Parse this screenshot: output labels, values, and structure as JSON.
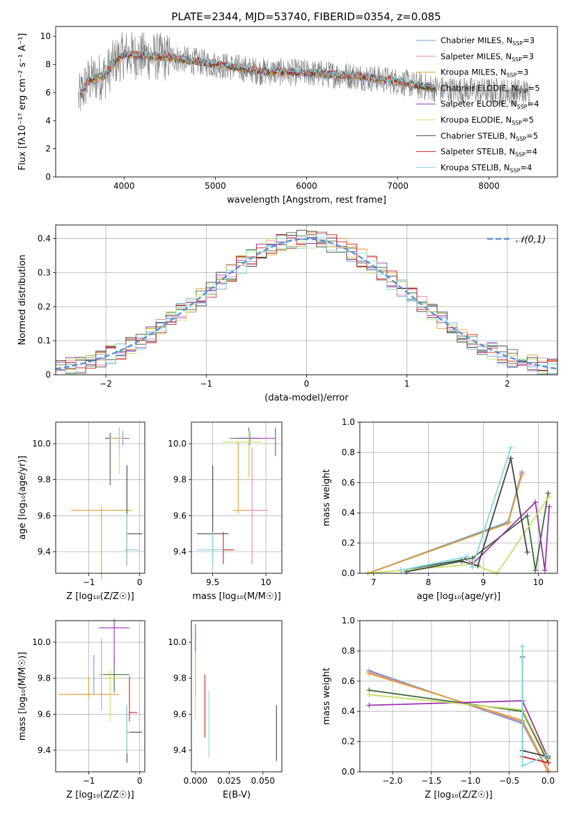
{
  "figure_title": "PLATE=2344, MJD=53740, FIBERID=0354, z=0.085",
  "chart_data": [
    {
      "id": "spectrum",
      "type": "line",
      "title": "PLATE=2344, MJD=53740, FIBERID=0354, z=0.085",
      "xlabel": "wavelength [Angstrom, rest frame]",
      "ylabel": "Flux [fλ10⁻¹⁷ erg cm⁻² s⁻¹ A⁻¹]",
      "xlim": [
        3250,
        8750
      ],
      "ylim": [
        0,
        10.7
      ],
      "xticks": [
        4000,
        5000,
        6000,
        7000,
        8000
      ],
      "yticks": [
        0,
        2,
        4,
        6,
        8,
        10
      ],
      "grid": false,
      "legend_position": "top-right",
      "data_series": {
        "name": "data",
        "color": "#808080",
        "wavelength_range": [
          3500,
          8450
        ]
      },
      "model_anchor_points": {
        "wavelength": [
          3500,
          3600,
          3800,
          3900,
          4000,
          4200,
          4500,
          5000,
          5500,
          6000,
          6500,
          7000,
          7200,
          7400
        ],
        "flux": [
          5.5,
          6.8,
          7.3,
          8.2,
          8.7,
          8.6,
          8.5,
          8.0,
          7.5,
          7.4,
          7.2,
          6.8,
          6.5,
          6.3
        ]
      },
      "series": [
        {
          "name": "Chabrier MILES, N",
          "sub": "SSP",
          "tail": "=3",
          "color": "#6a9ad6"
        },
        {
          "name": "Salpeter MILES, N",
          "sub": "SSP",
          "tail": "=3",
          "color": "#e58a9a"
        },
        {
          "name": "Kroupa MILES, N",
          "sub": "SSP",
          "tail": "=3",
          "color": "#e0a030"
        },
        {
          "name": "Chabrier ELODIE, N",
          "sub": "SSP",
          "tail": "=5",
          "color": "#3a6a3a"
        },
        {
          "name": "Salpeter ELODIE, N",
          "sub": "SSP",
          "tail": "=4",
          "color": "#9b30b0"
        },
        {
          "name": "Kroupa ELODIE, N",
          "sub": "SSP",
          "tail": "=5",
          "color": "#c8e060"
        },
        {
          "name": "Chabrier STELIB, N",
          "sub": "SSP",
          "tail": "=5",
          "color": "#404040"
        },
        {
          "name": "Salpeter STELIB, N",
          "sub": "SSP",
          "tail": "=4",
          "color": "#cc2222"
        },
        {
          "name": "Kroupa STELIB, N",
          "sub": "SSP",
          "tail": "=4",
          "color": "#80d8e0"
        }
      ]
    },
    {
      "id": "residuals",
      "type": "step",
      "xlabel": "(data-model)/error",
      "ylabel": "Normed distribution",
      "xlim": [
        -2.5,
        2.5
      ],
      "ylim": [
        0,
        0.44
      ],
      "xticks": [
        -2,
        -1,
        0,
        1,
        2
      ],
      "xtick_labels": [
        "−2",
        "−1",
        "0",
        "1",
        "2"
      ],
      "yticks": [
        0.0,
        0.1,
        0.2,
        0.3,
        0.4
      ],
      "grid": true,
      "legend": [
        {
          "name": "𝒩(0,1)",
          "color": "#5b8fd6",
          "style": "dashed"
        }
      ],
      "legend_position": "top-right",
      "bin_width": 0.1,
      "gaussian": {
        "mean": 0,
        "sigma": 1
      }
    },
    {
      "id": "age_vs_Z",
      "type": "errorbar",
      "xlabel": "Z [log₁₀(Z/Z☉)]",
      "ylabel": "age  [log₁₀(age/yr)]",
      "xlim": [
        -1.65,
        0.1
      ],
      "ylim": [
        9.28,
        10.12
      ],
      "xticks": [
        -1,
        0
      ],
      "xtick_labels": [
        "−1",
        "0"
      ],
      "yticks": [
        9.4,
        9.6,
        9.8,
        10.0
      ],
      "yticks_fmt": 1,
      "grid": true,
      "points": [
        {
          "series": 0,
          "x": -0.33,
          "y": 10.03,
          "xerr": [
            0.05,
            0.05
          ],
          "yerr": [
            0.04,
            0.04
          ]
        },
        {
          "series": 1,
          "x": -0.4,
          "y": 10.03,
          "xerr": [
            0.08,
            0.08
          ],
          "yerr": [
            0.06,
            0.06
          ]
        },
        {
          "series": 2,
          "x": -0.75,
          "y": 9.63,
          "xerr": [
            0.6,
            0.6
          ],
          "yerr": [
            0.38,
            0.02
          ]
        },
        {
          "series": 3,
          "x": -0.58,
          "y": 10.03,
          "xerr": [
            0.1,
            0.1
          ],
          "yerr": [
            0.26,
            0.03
          ]
        },
        {
          "series": 4,
          "x": -0.4,
          "y": 10.03,
          "xerr": [
            0.27,
            0.2
          ],
          "yerr": [
            0.06,
            0.04
          ]
        },
        {
          "series": 5,
          "x": -0.4,
          "y": 10.03,
          "xerr": [
            0.2,
            0.1
          ],
          "yerr": [
            0.2,
            0.05
          ]
        },
        {
          "series": 6,
          "x": -0.25,
          "y": 9.5,
          "xerr": [
            0.0,
            0.3
          ],
          "yerr": [
            0.18,
            0.38
          ]
        },
        {
          "series": 7,
          "x": -0.25,
          "y": 9.41,
          "xerr": [
            0.05,
            0.1
          ],
          "yerr": [
            0.08,
            0.15
          ]
        },
        {
          "series": 8,
          "x": -0.25,
          "y": 9.41,
          "xerr": [
            0.05,
            0.25
          ],
          "yerr": [
            0.09,
            0.2
          ]
        }
      ]
    },
    {
      "id": "age_vs_mass",
      "type": "errorbar",
      "xlabel": "mass [log₁₀(M/M☉)]",
      "ylabel": "",
      "xlim": [
        9.3,
        10.15
      ],
      "ylim": [
        9.28,
        10.12
      ],
      "xticks": [
        9.5,
        10.0
      ],
      "yticks": [
        9.4,
        9.6,
        9.8,
        10.0
      ],
      "yticks_fmt": 1,
      "grid": true,
      "points": [
        {
          "series": 0,
          "x": 9.85,
          "y": 10.03,
          "xerr": [
            0.12,
            0.1
          ],
          "yerr": [
            0.04,
            0.04
          ]
        },
        {
          "series": 1,
          "x": 9.87,
          "y": 9.63,
          "xerr": [
            0.1,
            0.15
          ],
          "yerr": [
            0.3,
            0.35
          ]
        },
        {
          "series": 2,
          "x": 9.74,
          "y": 9.63,
          "xerr": [
            0.05,
            0.07
          ],
          "yerr": [
            0.02,
            0.38
          ]
        },
        {
          "series": 3,
          "x": 9.84,
          "y": 10.03,
          "xerr": [
            0.18,
            0.05
          ],
          "yerr": [
            0.2,
            0.06
          ]
        },
        {
          "series": 4,
          "x": 10.09,
          "y": 10.03,
          "xerr": [
            0.3,
            0.0
          ],
          "yerr": [
            0.1,
            0.06
          ]
        },
        {
          "series": 5,
          "x": 9.84,
          "y": 10.01,
          "xerr": [
            0.25,
            0.12
          ],
          "yerr": [
            0.2,
            0.06
          ]
        },
        {
          "series": 6,
          "x": 9.5,
          "y": 9.5,
          "xerr": [
            0.15,
            0.15
          ],
          "yerr": [
            0.18,
            0.38
          ]
        },
        {
          "series": 7,
          "x": 9.6,
          "y": 9.41,
          "xerr": [
            0.15,
            0.1
          ],
          "yerr": [
            0.08,
            0.1
          ]
        },
        {
          "series": 8,
          "x": 9.5,
          "y": 9.41,
          "xerr": [
            0.15,
            0.1
          ],
          "yerr": [
            0.09,
            0.1
          ]
        }
      ]
    },
    {
      "id": "mw_vs_age",
      "type": "line",
      "xlabel": "age  [log₁₀(age/yr)]",
      "ylabel": "mass weight",
      "xlim": [
        6.75,
        10.35
      ],
      "ylim": [
        0,
        1.0
      ],
      "xticks": [
        7,
        8,
        9,
        10
      ],
      "yticks": [
        0.0,
        0.2,
        0.4,
        0.6,
        0.8,
        1.0
      ],
      "yticks_fmt": 1,
      "grid": true,
      "series": [
        {
          "series": 0,
          "x": [
            6.9,
            9.45,
            9.7
          ],
          "y": [
            0.0,
            0.34,
            0.67
          ]
        },
        {
          "series": 1,
          "x": [
            6.9,
            9.45,
            9.7
          ],
          "y": [
            0.0,
            0.33,
            0.66
          ]
        },
        {
          "series": 2,
          "x": [
            6.9,
            9.45,
            9.7
          ],
          "y": [
            0.0,
            0.33,
            0.65
          ]
        },
        {
          "series": 3,
          "x": [
            7.5,
            8.8,
            9.8,
            9.95,
            10.18
          ],
          "y": [
            0.02,
            0.1,
            0.38,
            0.02,
            0.53
          ]
        },
        {
          "series": 4,
          "x": [
            8.8,
            9.95,
            10.12,
            10.2
          ],
          "y": [
            0.06,
            0.47,
            0.02,
            0.44
          ]
        },
        {
          "series": 5,
          "x": [
            6.9,
            8.8,
            9.25,
            10.2
          ],
          "y": [
            0.0,
            0.06,
            0.0,
            0.51
          ]
        },
        {
          "series": 6,
          "x": [
            7.6,
            8.6,
            8.9,
            9.5,
            9.8
          ],
          "y": [
            0.01,
            0.08,
            0.05,
            0.76,
            0.14
          ]
        },
        {
          "series": 7,
          "x": [
            8.7,
            8.8
          ],
          "y": [
            0.1,
            0.06
          ]
        },
        {
          "series": 8,
          "x": [
            7.5,
            8.7,
            8.8,
            9.5
          ],
          "y": [
            0.02,
            0.11,
            0.04,
            0.83
          ]
        }
      ]
    },
    {
      "id": "mass_vs_Z",
      "type": "errorbar",
      "xlabel": "Z [log₁₀(Z/Z☉)]",
      "ylabel": "mass [log₁₀(M/M☉)]",
      "xlim": [
        -1.65,
        0.1
      ],
      "ylim": [
        9.28,
        10.12
      ],
      "xticks": [
        -1,
        0
      ],
      "xtick_labels": [
        "−1",
        "0"
      ],
      "yticks": [
        9.4,
        9.6,
        9.8,
        10.0
      ],
      "yticks_fmt": 1,
      "grid": true,
      "points": [
        {
          "series": 0,
          "x": -0.9,
          "y": 9.71,
          "xerr": [
            0.4,
            0.4
          ],
          "yerr": [
            0.0,
            0.22
          ]
        },
        {
          "series": 1,
          "x": -0.75,
          "y": 9.82,
          "xerr": [
            0.05,
            0.1
          ],
          "yerr": [
            0.2,
            0.2
          ]
        },
        {
          "series": 2,
          "x": -1.0,
          "y": 9.71,
          "xerr": [
            0.6,
            0.6
          ],
          "yerr": [
            0.02,
            0.1
          ]
        },
        {
          "series": 3,
          "x": -0.5,
          "y": 9.82,
          "xerr": [
            0.2,
            0.3
          ],
          "yerr": [
            0.1,
            0.1
          ]
        },
        {
          "series": 4,
          "x": -0.5,
          "y": 10.08,
          "xerr": [
            0.3,
            0.3
          ],
          "yerr": [
            0.2,
            0.05
          ]
        },
        {
          "series": 5,
          "x": -0.58,
          "y": 9.8,
          "xerr": [
            0.1,
            0.2
          ],
          "yerr": [
            0.24,
            0.05
          ]
        },
        {
          "series": 6,
          "x": -0.25,
          "y": 9.5,
          "xerr": [
            0.0,
            0.3
          ],
          "yerr": [
            0.17,
            0.15
          ]
        },
        {
          "series": 7,
          "x": -0.2,
          "y": 9.61,
          "xerr": [
            0.0,
            0.15
          ],
          "yerr": [
            0.05,
            0.2
          ]
        },
        {
          "series": 8,
          "x": -0.25,
          "y": 9.5,
          "xerr": [
            0.0,
            0.05
          ],
          "yerr": [
            0.12,
            0.15
          ]
        }
      ]
    },
    {
      "id": "mass_vs_ebv",
      "type": "errorbar",
      "xlabel": "E(B-V)",
      "ylabel": "",
      "xlim": [
        -0.003,
        0.064
      ],
      "ylim": [
        9.28,
        10.12
      ],
      "xticks": [
        0.0,
        0.025,
        0.05
      ],
      "xtick_labels": [
        "0.000",
        "0.025",
        "0.050"
      ],
      "yticks": [
        9.4,
        9.6,
        9.8,
        10.0
      ],
      "yticks_fmt": 1,
      "grid": false,
      "points": [
        {
          "series": 4,
          "x": 0.0,
          "y": 9.9,
          "xerr": [
            0,
            0
          ],
          "yerr": [
            0.2,
            0.2
          ]
        },
        {
          "series": 5,
          "x": 0.0,
          "y": 9.75,
          "xerr": [
            0,
            0
          ],
          "yerr": [
            0.18,
            0.2
          ]
        },
        {
          "series": 7,
          "x": 0.007,
          "y": 9.65,
          "xerr": [
            0,
            0
          ],
          "yerr": [
            0.18,
            0.17
          ]
        },
        {
          "series": 8,
          "x": 0.01,
          "y": 9.55,
          "xerr": [
            0,
            0
          ],
          "yerr": [
            0.19,
            0.18
          ]
        },
        {
          "series": 6,
          "x": 0.06,
          "y": 9.51,
          "xerr": [
            0,
            0
          ],
          "yerr": [
            0.17,
            0.14
          ]
        }
      ]
    },
    {
      "id": "mw_vs_Z",
      "type": "line",
      "xlabel": "Z [log₁₀(Z/Z☉)]",
      "ylabel": "mass weight",
      "xlim": [
        -2.42,
        0.12
      ],
      "ylim": [
        0,
        1.0
      ],
      "xticks": [
        -2.0,
        -1.5,
        -1.0,
        -0.5,
        0.0
      ],
      "xtick_labels": [
        "−2.0",
        "−1.5",
        "−1.0",
        "−0.5",
        "0.0"
      ],
      "yticks": [
        0.0,
        0.2,
        0.4,
        0.6,
        0.8,
        1.0
      ],
      "yticks_fmt": 1,
      "grid": true,
      "series": [
        {
          "series": 0,
          "x": [
            -2.3,
            -0.33,
            0.0
          ],
          "y": [
            0.67,
            0.32,
            0.0
          ]
        },
        {
          "series": 1,
          "x": [
            -2.3,
            -0.33,
            0.0
          ],
          "y": [
            0.66,
            0.33,
            0.0
          ]
        },
        {
          "series": 2,
          "x": [
            -2.3,
            -0.33,
            0.0
          ],
          "y": [
            0.65,
            0.34,
            0.01
          ]
        },
        {
          "series": 3,
          "x": [
            -2.3,
            -0.33,
            0.0
          ],
          "y": [
            0.54,
            0.4,
            0.06
          ]
        },
        {
          "series": 4,
          "x": [
            -2.3,
            -0.33,
            0.0
          ],
          "y": [
            0.44,
            0.47,
            0.09
          ]
        },
        {
          "series": 5,
          "x": [
            -2.3,
            -0.33,
            0.0
          ],
          "y": [
            0.51,
            0.41,
            0.08
          ]
        },
        {
          "series": 6,
          "x": [
            -0.33,
            -0.33,
            0.0
          ],
          "y": [
            0.76,
            0.14,
            0.1
          ]
        },
        {
          "series": 7,
          "x": [
            -0.33,
            0.0
          ],
          "y": [
            0.1,
            0.06
          ]
        },
        {
          "series": 8,
          "x": [
            -0.33,
            -0.33,
            0.0
          ],
          "y": [
            0.83,
            0.04,
            0.11
          ]
        }
      ]
    }
  ]
}
